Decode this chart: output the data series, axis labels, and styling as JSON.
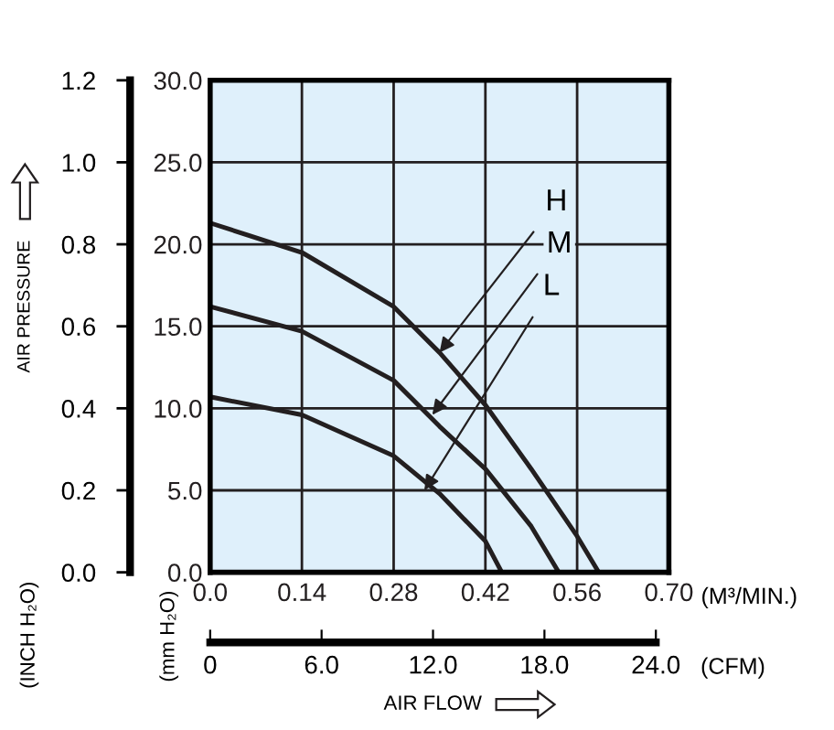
{
  "chart_data": {
    "type": "line",
    "xlabel": "(M³/MIN.)",
    "x2label": "(CFM)",
    "ylabel": "(mm H₂O)",
    "y2label": "(INCH H₂O)",
    "annotations": [
      "AIR PRESSURE",
      "AIR FLOW",
      {
        "text": "H",
        "x": 0.35,
        "y": 13.4
      },
      {
        "text": "M",
        "x": 0.339,
        "y": 9.6
      },
      {
        "text": "L",
        "x": 0.327,
        "y": 5.0
      }
    ],
    "series": [
      {
        "color": "#231f20",
        "x": [
          0.0,
          0.14,
          0.28,
          0.35,
          0.42,
          0.49,
          0.56,
          0.593
        ],
        "values": [
          21.3,
          19.5,
          16.2,
          13.4,
          10.2,
          6.3,
          2.2,
          0.0
        ]
      },
      {
        "color": "#231f20",
        "x": [
          0.0,
          0.14,
          0.28,
          0.35,
          0.42,
          0.49,
          0.532
        ],
        "values": [
          16.2,
          14.7,
          11.7,
          8.9,
          6.3,
          2.8,
          0.0
        ]
      },
      {
        "color": "#231f20",
        "x": [
          0.0,
          0.14,
          0.28,
          0.35,
          0.42,
          0.445
        ],
        "values": [
          10.7,
          9.6,
          7.1,
          4.8,
          1.9,
          0.0
        ]
      }
    ],
    "xlim": [
      0,
      0.7
    ],
    "xticks": [
      {
        "value": 0,
        "label": "0.0"
      },
      0.14,
      0.28,
      0.42,
      0.56,
      {
        "value": 0.7,
        "label": "0.70"
      }
    ],
    "x2lim": [
      0,
      24.7
    ],
    "x2ticks": [
      0,
      {
        "value": 6,
        "label": "6.0"
      },
      {
        "value": 12,
        "label": "12.0"
      },
      {
        "value": 18,
        "label": "18.0"
      },
      {
        "value": 24,
        "label": "24.0"
      }
    ],
    "ylim": [
      0,
      30
    ],
    "yticks": [
      {
        "value": 0,
        "label": "0.0"
      },
      {
        "value": 5,
        "label": "5.0"
      },
      {
        "value": 10,
        "label": "10.0"
      },
      {
        "value": 15,
        "label": "15.0"
      },
      {
        "value": 20,
        "label": "20.0"
      },
      {
        "value": 25,
        "label": "25.0"
      },
      {
        "value": 30,
        "label": "30.0"
      }
    ],
    "y2lim": [
      0,
      1.2
    ],
    "y2ticks": [
      {
        "value": 0,
        "label": "0.0"
      },
      0.2,
      0.4,
      0.6,
      0.8,
      {
        "value": 1.0,
        "label": "1.0"
      },
      1.2
    ],
    "grid": true,
    "legend": false,
    "marker": "none",
    "line_style": "solid"
  }
}
